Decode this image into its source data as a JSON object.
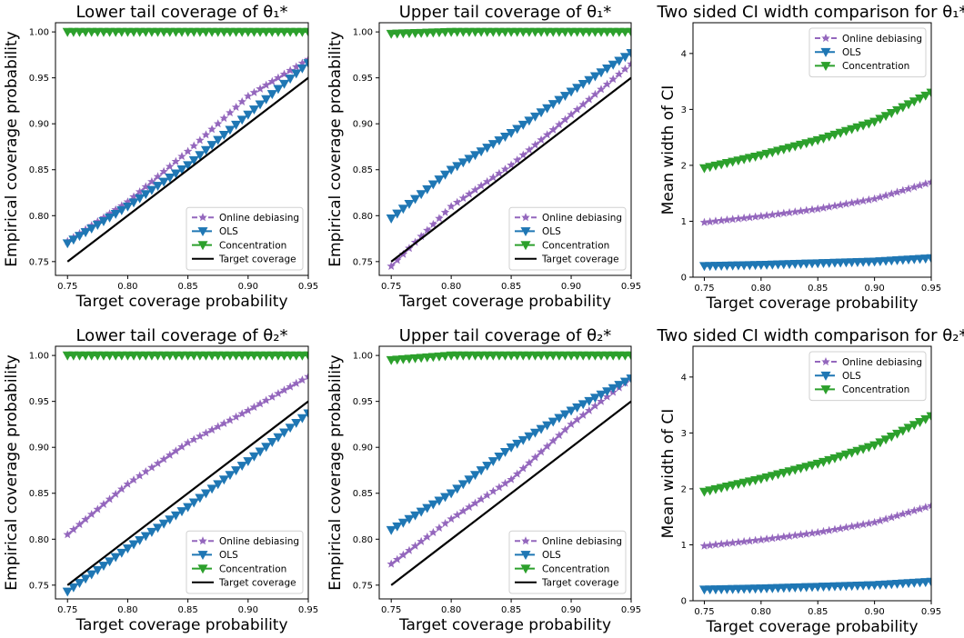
{
  "colors": {
    "online": "#9467bd",
    "ols": "#1f77b4",
    "concentration": "#2ca02c",
    "target": "#000000"
  },
  "chart_data": [
    {
      "id": "p1",
      "type": "line",
      "title": "Lower tail coverage of θ₁*",
      "xlabel": "Target coverage probability",
      "ylabel": "Empirical coverage probability",
      "xlim": [
        0.74,
        0.95
      ],
      "ylim": [
        0.735,
        1.01
      ],
      "xticks": [
        0.75,
        0.8,
        0.85,
        0.9,
        0.95
      ],
      "xtick_labels": [
        "0.75",
        "0.80",
        "0.85",
        "0.90",
        "0.95"
      ],
      "yticks": [
        0.75,
        0.8,
        0.85,
        0.9,
        0.95,
        1.0
      ],
      "ytick_labels": [
        "0.75",
        "0.80",
        "0.85",
        "0.90",
        "0.95",
        "1.00"
      ],
      "legend": "bottom-right",
      "grid": false,
      "series": [
        {
          "name": "Online debiasing",
          "key": "online",
          "marker": "star",
          "dash": "6,3",
          "x": [
            0.75,
            0.8,
            0.85,
            0.9,
            0.95
          ],
          "values": [
            0.772,
            0.815,
            0.87,
            0.93,
            0.97
          ]
        },
        {
          "name": "OLS",
          "key": "ols",
          "marker": "tri",
          "dash": "9,4",
          "x": [
            0.75,
            0.8,
            0.85,
            0.9,
            0.95
          ],
          "values": [
            0.77,
            0.81,
            0.855,
            0.91,
            0.966
          ]
        },
        {
          "name": "Concentration",
          "key": "concentration",
          "marker": "tri",
          "dash": "9,4",
          "x": [
            0.75,
            0.95
          ],
          "values": [
            1.0,
            1.0
          ]
        },
        {
          "name": "Target coverage",
          "key": "target",
          "marker": "none",
          "dash": "",
          "x": [
            0.75,
            0.95
          ],
          "values": [
            0.75,
            0.95
          ]
        }
      ]
    },
    {
      "id": "p2",
      "type": "line",
      "title": "Upper tail coverage of θ₁*",
      "xlabel": "Target coverage probability",
      "ylabel": "Empirical coverage probability",
      "xlim": [
        0.74,
        0.95
      ],
      "ylim": [
        0.735,
        1.01
      ],
      "xticks": [
        0.75,
        0.8,
        0.85,
        0.9,
        0.95
      ],
      "xtick_labels": [
        "0.75",
        "0.80",
        "0.85",
        "0.90",
        "0.95"
      ],
      "yticks": [
        0.75,
        0.8,
        0.85,
        0.9,
        0.95,
        1.0
      ],
      "ytick_labels": [
        "0.75",
        "0.80",
        "0.85",
        "0.90",
        "0.95",
        "1.00"
      ],
      "legend": "bottom-right",
      "grid": false,
      "series": [
        {
          "name": "Online debiasing",
          "key": "online",
          "marker": "star",
          "dash": "6,3",
          "x": [
            0.75,
            0.8,
            0.85,
            0.9,
            0.95
          ],
          "values": [
            0.745,
            0.81,
            0.855,
            0.91,
            0.965
          ]
        },
        {
          "name": "OLS",
          "key": "ols",
          "marker": "tri",
          "dash": "9,4",
          "x": [
            0.75,
            0.8,
            0.85,
            0.9,
            0.95
          ],
          "values": [
            0.797,
            0.85,
            0.89,
            0.935,
            0.977
          ]
        },
        {
          "name": "Concentration",
          "key": "concentration",
          "marker": "tri",
          "dash": "9,4",
          "x": [
            0.75,
            0.8,
            0.95
          ],
          "values": [
            0.998,
            1.0,
            1.0
          ]
        },
        {
          "name": "Target coverage",
          "key": "target",
          "marker": "none",
          "dash": "",
          "x": [
            0.75,
            0.95
          ],
          "values": [
            0.75,
            0.95
          ]
        }
      ]
    },
    {
      "id": "p3",
      "type": "line",
      "title": "Two sided CI width comparison for θ₁*",
      "xlabel": "Target coverage probability",
      "ylabel": "Mean width of CI",
      "xlim": [
        0.74,
        0.95
      ],
      "ylim": [
        0,
        4.55
      ],
      "xticks": [
        0.75,
        0.8,
        0.85,
        0.9,
        0.95
      ],
      "xtick_labels": [
        "0.75",
        "0.80",
        "0.85",
        "0.90",
        "0.95"
      ],
      "yticks": [
        0,
        1,
        2,
        3,
        4
      ],
      "ytick_labels": [
        "0",
        "1",
        "2",
        "3",
        "4"
      ],
      "legend": "top-right",
      "grid": false,
      "series": [
        {
          "name": "Online debiasing",
          "key": "online",
          "marker": "star",
          "dash": "6,3",
          "x": [
            0.75,
            0.8,
            0.85,
            0.9,
            0.95
          ],
          "values": [
            0.98,
            1.09,
            1.22,
            1.4,
            1.7
          ]
        },
        {
          "name": "OLS",
          "key": "ols",
          "marker": "tri",
          "dash": "9,4",
          "x": [
            0.75,
            0.8,
            0.85,
            0.9,
            0.95
          ],
          "values": [
            0.2,
            0.22,
            0.25,
            0.28,
            0.34
          ]
        },
        {
          "name": "Concentration",
          "key": "concentration",
          "marker": "tri",
          "dash": "9,4",
          "x": [
            0.75,
            0.8,
            0.85,
            0.9,
            0.95
          ],
          "values": [
            1.95,
            2.18,
            2.45,
            2.78,
            3.3
          ]
        }
      ]
    },
    {
      "id": "p4",
      "type": "line",
      "title": "Lower tail coverage of θ₂*",
      "xlabel": "Target coverage probability",
      "ylabel": "Empirical coverage probability",
      "xlim": [
        0.74,
        0.95
      ],
      "ylim": [
        0.735,
        1.01
      ],
      "xticks": [
        0.75,
        0.8,
        0.85,
        0.9,
        0.95
      ],
      "xtick_labels": [
        "0.75",
        "0.80",
        "0.85",
        "0.90",
        "0.95"
      ],
      "yticks": [
        0.75,
        0.8,
        0.85,
        0.9,
        0.95,
        1.0
      ],
      "ytick_labels": [
        "0.75",
        "0.80",
        "0.85",
        "0.90",
        "0.95",
        "1.00"
      ],
      "legend": "bottom-right",
      "grid": false,
      "series": [
        {
          "name": "Online debiasing",
          "key": "online",
          "marker": "star",
          "dash": "6,3",
          "x": [
            0.75,
            0.8,
            0.85,
            0.9,
            0.95
          ],
          "values": [
            0.805,
            0.86,
            0.905,
            0.94,
            0.977
          ]
        },
        {
          "name": "OLS",
          "key": "ols",
          "marker": "tri",
          "dash": "9,4",
          "x": [
            0.75,
            0.8,
            0.85,
            0.9,
            0.95
          ],
          "values": [
            0.743,
            0.79,
            0.835,
            0.885,
            0.937
          ]
        },
        {
          "name": "Concentration",
          "key": "concentration",
          "marker": "tri",
          "dash": "9,4",
          "x": [
            0.75,
            0.95
          ],
          "values": [
            1.0,
            1.0
          ]
        },
        {
          "name": "Target coverage",
          "key": "target",
          "marker": "none",
          "dash": "",
          "x": [
            0.75,
            0.95
          ],
          "values": [
            0.75,
            0.95
          ]
        }
      ]
    },
    {
      "id": "p5",
      "type": "line",
      "title": "Upper tail coverage of θ₂*",
      "xlabel": "Target coverage probability",
      "ylabel": "Empirical coverage probability",
      "xlim": [
        0.74,
        0.95
      ],
      "ylim": [
        0.735,
        1.01
      ],
      "xticks": [
        0.75,
        0.8,
        0.85,
        0.9,
        0.95
      ],
      "xtick_labels": [
        "0.75",
        "0.80",
        "0.85",
        "0.90",
        "0.95"
      ],
      "yticks": [
        0.75,
        0.8,
        0.85,
        0.9,
        0.95,
        1.0
      ],
      "ytick_labels": [
        "0.75",
        "0.80",
        "0.85",
        "0.90",
        "0.95",
        "1.00"
      ],
      "legend": "bottom-right",
      "grid": false,
      "series": [
        {
          "name": "Online debiasing",
          "key": "online",
          "marker": "star",
          "dash": "6,3",
          "x": [
            0.75,
            0.8,
            0.85,
            0.9,
            0.95
          ],
          "values": [
            0.773,
            0.822,
            0.865,
            0.925,
            0.975
          ]
        },
        {
          "name": "OLS",
          "key": "ols",
          "marker": "tri",
          "dash": "9,4",
          "x": [
            0.75,
            0.8,
            0.85,
            0.9,
            0.95
          ],
          "values": [
            0.81,
            0.85,
            0.9,
            0.94,
            0.975
          ]
        },
        {
          "name": "Concentration",
          "key": "concentration",
          "marker": "tri",
          "dash": "9,4",
          "x": [
            0.75,
            0.8,
            0.95
          ],
          "values": [
            0.995,
            1.0,
            1.0
          ]
        },
        {
          "name": "Target coverage",
          "key": "target",
          "marker": "none",
          "dash": "",
          "x": [
            0.75,
            0.95
          ],
          "values": [
            0.75,
            0.95
          ]
        }
      ]
    },
    {
      "id": "p6",
      "type": "line",
      "title": "Two sided CI width comparison for θ₂*",
      "xlabel": "Target coverage probability",
      "ylabel": "Mean width of CI",
      "xlim": [
        0.74,
        0.95
      ],
      "ylim": [
        0,
        4.55
      ],
      "xticks": [
        0.75,
        0.8,
        0.85,
        0.9,
        0.95
      ],
      "xtick_labels": [
        "0.75",
        "0.80",
        "0.85",
        "0.90",
        "0.95"
      ],
      "yticks": [
        0,
        1,
        2,
        3,
        4
      ],
      "ytick_labels": [
        "0",
        "1",
        "2",
        "3",
        "4"
      ],
      "legend": "top-right",
      "grid": false,
      "series": [
        {
          "name": "Online debiasing",
          "key": "online",
          "marker": "star",
          "dash": "6,3",
          "x": [
            0.75,
            0.8,
            0.85,
            0.9,
            0.95
          ],
          "values": [
            0.98,
            1.09,
            1.22,
            1.4,
            1.7
          ]
        },
        {
          "name": "OLS",
          "key": "ols",
          "marker": "tri",
          "dash": "9,4",
          "x": [
            0.75,
            0.8,
            0.85,
            0.9,
            0.95
          ],
          "values": [
            0.2,
            0.22,
            0.25,
            0.28,
            0.34
          ]
        },
        {
          "name": "Concentration",
          "key": "concentration",
          "marker": "tri",
          "dash": "9,4",
          "x": [
            0.75,
            0.8,
            0.85,
            0.9,
            0.95
          ],
          "values": [
            1.95,
            2.18,
            2.45,
            2.78,
            3.3
          ]
        }
      ]
    }
  ]
}
